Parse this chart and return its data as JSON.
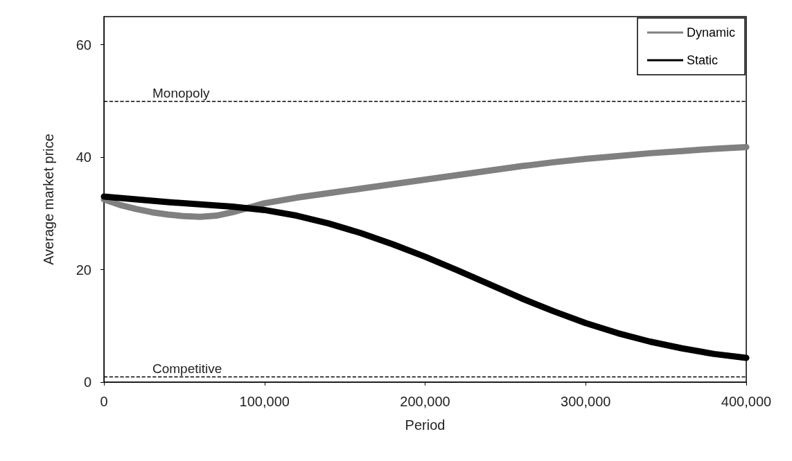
{
  "chart_data": {
    "type": "line",
    "xlabel": "Period",
    "ylabel": "Average market price",
    "xlim": [
      0,
      400000
    ],
    "xticks": [
      {
        "value": 0,
        "label": "0"
      },
      {
        "value": 100000,
        "label": "100,000"
      },
      {
        "value": 200000,
        "label": "200,000"
      },
      {
        "value": 300000,
        "label": "300,000"
      },
      {
        "value": 400000,
        "label": "400,000"
      }
    ],
    "ylim": [
      0,
      65
    ],
    "yticks": [
      0,
      20,
      40,
      60
    ],
    "grid": false,
    "legend": "top right",
    "marker": "none",
    "line_style": "solid",
    "series": [
      {
        "name": "Dynamic",
        "color": "#808080",
        "x": [
          0,
          10000,
          20000,
          30000,
          40000,
          50000,
          60000,
          70000,
          80000,
          90000,
          100000,
          110000,
          120000,
          140000,
          160000,
          180000,
          200000,
          220000,
          240000,
          260000,
          280000,
          300000,
          320000,
          340000,
          360000,
          380000,
          400000
        ],
        "values": [
          32.5,
          31.5,
          30.8,
          30.2,
          29.8,
          29.5,
          29.4,
          29.6,
          30.2,
          31,
          31.8,
          32.3,
          32.8,
          33.6,
          34.4,
          35.2,
          36,
          36.8,
          37.6,
          38.4,
          39.1,
          39.7,
          40.2,
          40.7,
          41.1,
          41.5,
          41.8
        ]
      },
      {
        "name": "Static",
        "color": "#000000",
        "x": [
          0,
          20000,
          40000,
          60000,
          80000,
          100000,
          120000,
          140000,
          160000,
          180000,
          200000,
          220000,
          240000,
          260000,
          280000,
          300000,
          320000,
          340000,
          360000,
          380000,
          400000
        ],
        "values": [
          33,
          32.5,
          32,
          31.6,
          31.2,
          30.6,
          29.6,
          28.2,
          26.5,
          24.5,
          22.3,
          19.9,
          17.4,
          14.9,
          12.6,
          10.5,
          8.7,
          7.2,
          6,
          5,
          4.3
        ]
      }
    ],
    "ref_lines": [
      {
        "axis": "y",
        "value": 50,
        "label": "Monopoly",
        "color": "#000000",
        "line_style": "dashed"
      },
      {
        "axis": "y",
        "value": 1,
        "label": "Competitive",
        "color": "#000000",
        "line_style": "dashed"
      }
    ]
  }
}
